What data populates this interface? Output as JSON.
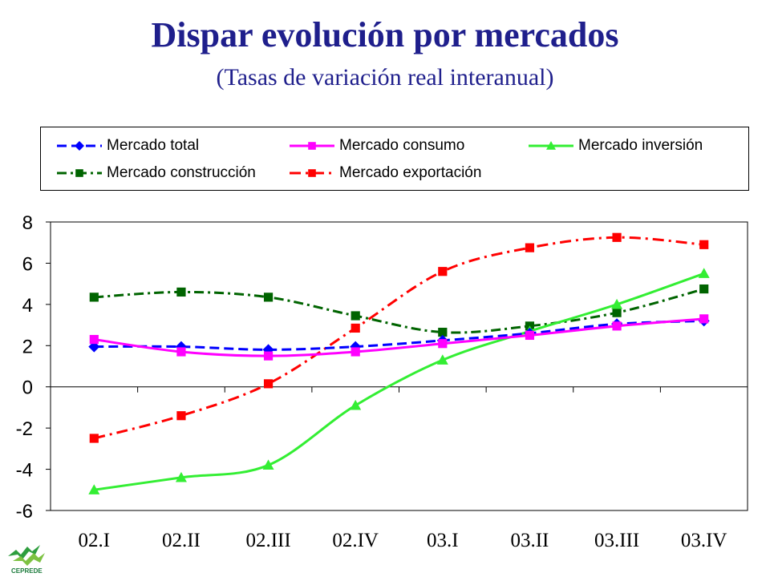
{
  "title": "Dispar evolución por mercados",
  "subtitle": "(Tasas de variación real interanual)",
  "logo_text": "CEPREDE",
  "chart_data": {
    "type": "line",
    "title": "Dispar evolución por mercados",
    "subtitle": "(Tasas de variación real interanual)",
    "categories": [
      "02.I",
      "02.II",
      "02.III",
      "02.IV",
      "03.I",
      "03.II",
      "03.III",
      "03.IV"
    ],
    "ylim": [
      -6,
      8
    ],
    "yticks": [
      -6,
      -4,
      -2,
      0,
      2,
      4,
      6,
      8
    ],
    "legend_position": "top",
    "series": [
      {
        "name": "Mercado total",
        "values": [
          1.95,
          1.95,
          1.8,
          1.95,
          2.25,
          2.6,
          3.05,
          3.2
        ],
        "color": "#0000ff",
        "marker": "diamond",
        "dash": "12,6"
      },
      {
        "name": "Mercado consumo",
        "values": [
          2.3,
          1.7,
          1.5,
          1.7,
          2.1,
          2.5,
          2.95,
          3.3
        ],
        "color": "#ff00ff",
        "marker": "square",
        "dash": ""
      },
      {
        "name": "Mercado inversión",
        "values": [
          -5.0,
          -4.4,
          -3.8,
          -0.9,
          1.3,
          2.7,
          4.0,
          5.5
        ],
        "color": "#33ee33",
        "marker": "triangle",
        "dash": ""
      },
      {
        "name": "Mercado construcción",
        "values": [
          4.35,
          4.6,
          4.35,
          3.45,
          2.65,
          2.95,
          3.6,
          4.75
        ],
        "color": "#006400",
        "marker": "square",
        "dash": "12,5,3,5"
      },
      {
        "name": "Mercado exportación",
        "values": [
          -2.5,
          -1.4,
          0.15,
          2.85,
          5.6,
          6.75,
          7.25,
          6.9
        ],
        "color": "#ff0000",
        "marker": "square",
        "dash": "14,6,3,6"
      }
    ]
  }
}
